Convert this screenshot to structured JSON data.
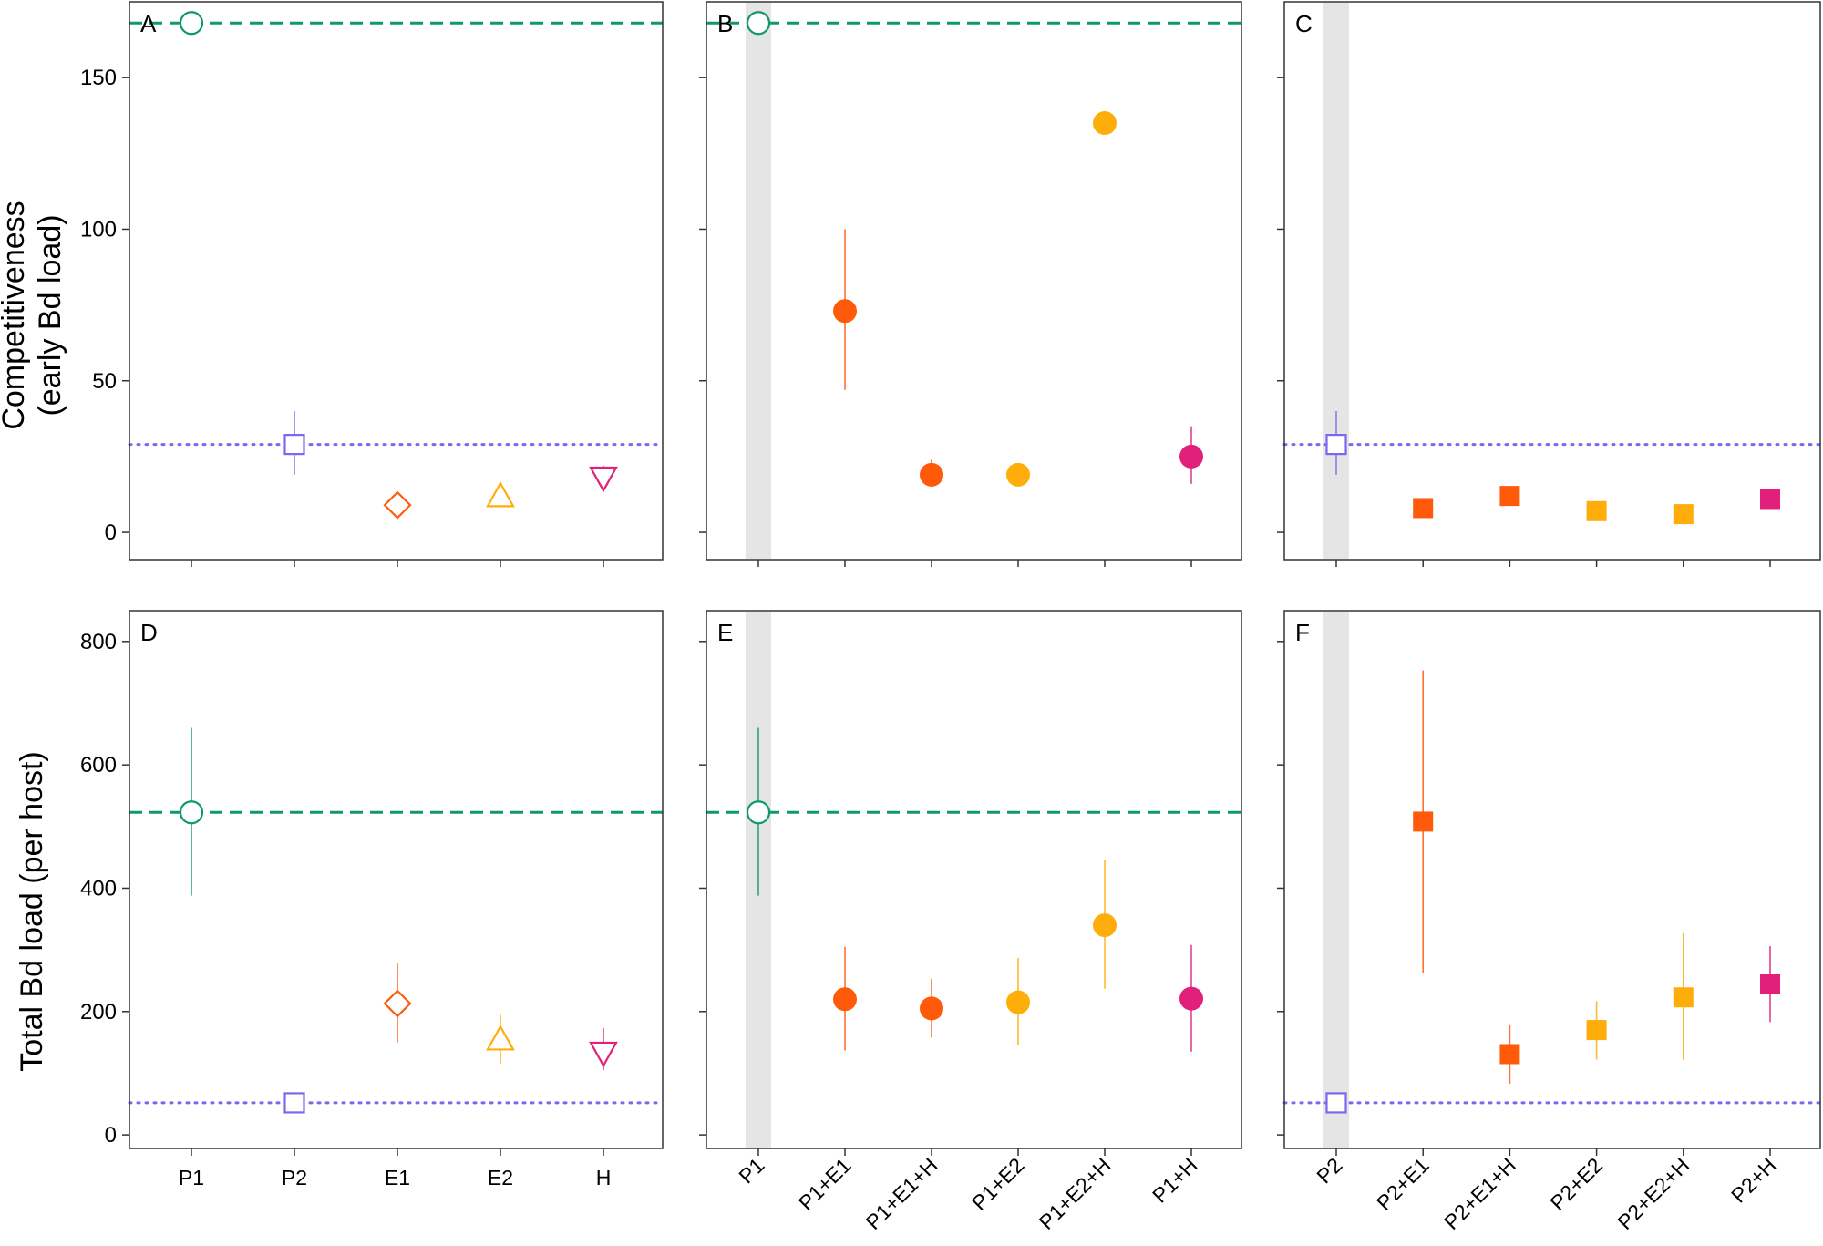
{
  "y_titles": {
    "top_line1": "Competitiveness",
    "top_line2": "(early Bd load)",
    "bottom": "Total Bd load (per host)"
  },
  "colors": {
    "P1": "#0f9870",
    "P2": "#7b68ee",
    "E1": "#ff5a0a",
    "E2": "#ffad0a",
    "H": "#e0207a",
    "shade": "#e5e5e5",
    "axis": "#333333"
  },
  "chart_data": [
    {
      "panel": "A",
      "type": "scatter",
      "row": "top",
      "ylim": [
        -9,
        175
      ],
      "yticks": [
        0,
        50,
        100,
        150
      ],
      "ylabel": "Competitiveness (early Bd load)",
      "ref_lines": [
        {
          "label": "P1",
          "value": 168,
          "style": "dashed"
        },
        {
          "label": "P2",
          "value": 29,
          "style": "dotted"
        }
      ],
      "shaded_category": null,
      "categories": [
        "P1",
        "P2",
        "E1",
        "E2",
        "H"
      ],
      "points": [
        {
          "cat": "P1",
          "value": 168,
          "low": 168,
          "high": 168,
          "color": "P1",
          "marker": "circle",
          "filled": false
        },
        {
          "cat": "P2",
          "value": 29,
          "low": 19,
          "high": 40,
          "color": "P2",
          "marker": "square",
          "filled": false
        },
        {
          "cat": "E1",
          "value": 9,
          "low": 9,
          "high": 9,
          "color": "E1",
          "marker": "diamond",
          "filled": false
        },
        {
          "cat": "E2",
          "value": 12,
          "low": 12,
          "high": 12,
          "color": "E2",
          "marker": "triangle",
          "filled": false
        },
        {
          "cat": "H",
          "value": 18,
          "low": 14,
          "high": 22,
          "color": "H",
          "marker": "triangle-down",
          "filled": false
        }
      ]
    },
    {
      "panel": "B",
      "type": "scatter",
      "row": "top",
      "ylim": [
        -9,
        175
      ],
      "yticks": [
        0,
        50,
        100,
        150
      ],
      "ref_lines": [
        {
          "label": "P1",
          "value": 168,
          "style": "dashed"
        }
      ],
      "shaded_category": "P1",
      "categories": [
        "P1",
        "P1+E1",
        "P1+E1+H",
        "P1+E2",
        "P1+E2+H",
        "P1+H"
      ],
      "points": [
        {
          "cat": "P1",
          "value": 168,
          "low": 168,
          "high": 168,
          "color": "P1",
          "marker": "circle",
          "filled": false
        },
        {
          "cat": "P1+E1",
          "value": 73,
          "low": 47,
          "high": 100,
          "color": "E1",
          "marker": "circle",
          "filled": true
        },
        {
          "cat": "P1+E1+H",
          "value": 19,
          "low": 15,
          "high": 24,
          "color": "E1",
          "marker": "circle",
          "filled": true
        },
        {
          "cat": "P1+E2",
          "value": 19,
          "low": 19,
          "high": 19,
          "color": "E2",
          "marker": "circle",
          "filled": true
        },
        {
          "cat": "P1+E2+H",
          "value": 135,
          "low": 135,
          "high": 135,
          "color": "E2",
          "marker": "circle",
          "filled": true
        },
        {
          "cat": "P1+H",
          "value": 25,
          "low": 16,
          "high": 35,
          "color": "H",
          "marker": "circle",
          "filled": true
        }
      ]
    },
    {
      "panel": "C",
      "type": "scatter",
      "row": "top",
      "ylim": [
        -9,
        175
      ],
      "yticks": [
        0,
        50,
        100,
        150
      ],
      "ref_lines": [
        {
          "label": "P2",
          "value": 29,
          "style": "dotted"
        }
      ],
      "shaded_category": "P2",
      "categories": [
        "P2",
        "P2+E1",
        "P2+E1+H",
        "P2+E2",
        "P2+E2+H",
        "P2+H"
      ],
      "points": [
        {
          "cat": "P2",
          "value": 29,
          "low": 19,
          "high": 40,
          "color": "P2",
          "marker": "square",
          "filled": false
        },
        {
          "cat": "P2+E1",
          "value": 8,
          "low": 8,
          "high": 8,
          "color": "E1",
          "marker": "square",
          "filled": true
        },
        {
          "cat": "P2+E1+H",
          "value": 12,
          "low": 12,
          "high": 12,
          "color": "E1",
          "marker": "square",
          "filled": true
        },
        {
          "cat": "P2+E2",
          "value": 7,
          "low": 7,
          "high": 7,
          "color": "E2",
          "marker": "square",
          "filled": true
        },
        {
          "cat": "P2+E2+H",
          "value": 6,
          "low": 6,
          "high": 6,
          "color": "E2",
          "marker": "square",
          "filled": true
        },
        {
          "cat": "P2+H",
          "value": 11,
          "low": 11,
          "high": 11,
          "color": "H",
          "marker": "square",
          "filled": true
        }
      ]
    },
    {
      "panel": "D",
      "type": "scatter",
      "row": "bottom",
      "ylim": [
        -22,
        850
      ],
      "yticks": [
        0,
        200,
        400,
        600,
        800
      ],
      "ylabel": "Total Bd load (per host)",
      "ref_lines": [
        {
          "label": "P1",
          "value": 523,
          "style": "dashed"
        },
        {
          "label": "P2",
          "value": 52,
          "style": "dotted"
        }
      ],
      "shaded_category": null,
      "categories": [
        "P1",
        "P2",
        "E1",
        "E2",
        "H"
      ],
      "points": [
        {
          "cat": "P1",
          "value": 523,
          "low": 388,
          "high": 660,
          "color": "P1",
          "marker": "circle",
          "filled": false
        },
        {
          "cat": "P2",
          "value": 52,
          "low": 52,
          "high": 52,
          "color": "P2",
          "marker": "square",
          "filled": false
        },
        {
          "cat": "E1",
          "value": 213,
          "low": 150,
          "high": 278,
          "color": "E1",
          "marker": "diamond",
          "filled": false
        },
        {
          "cat": "E2",
          "value": 155,
          "low": 115,
          "high": 195,
          "color": "E2",
          "marker": "triangle",
          "filled": false
        },
        {
          "cat": "H",
          "value": 133,
          "low": 105,
          "high": 173,
          "color": "H",
          "marker": "triangle-down",
          "filled": false
        }
      ]
    },
    {
      "panel": "E",
      "type": "scatter",
      "row": "bottom",
      "ylim": [
        -22,
        850
      ],
      "yticks": [
        0,
        200,
        400,
        600,
        800
      ],
      "ref_lines": [
        {
          "label": "P1",
          "value": 523,
          "style": "dashed"
        }
      ],
      "shaded_category": "P1",
      "categories": [
        "P1",
        "P1+E1",
        "P1+E1+H",
        "P1+E2",
        "P1+E2+H",
        "P1+H"
      ],
      "points": [
        {
          "cat": "P1",
          "value": 523,
          "low": 388,
          "high": 660,
          "color": "P1",
          "marker": "circle",
          "filled": false
        },
        {
          "cat": "P1+E1",
          "value": 220,
          "low": 137,
          "high": 305,
          "color": "E1",
          "marker": "circle",
          "filled": true
        },
        {
          "cat": "P1+E1+H",
          "value": 205,
          "low": 158,
          "high": 253,
          "color": "E1",
          "marker": "circle",
          "filled": true
        },
        {
          "cat": "P1+E2",
          "value": 215,
          "low": 145,
          "high": 287,
          "color": "E2",
          "marker": "circle",
          "filled": true
        },
        {
          "cat": "P1+E2+H",
          "value": 340,
          "low": 237,
          "high": 445,
          "color": "E2",
          "marker": "circle",
          "filled": true
        },
        {
          "cat": "P1+H",
          "value": 221,
          "low": 135,
          "high": 308,
          "color": "H",
          "marker": "circle",
          "filled": true
        }
      ]
    },
    {
      "panel": "F",
      "type": "scatter",
      "row": "bottom",
      "ylim": [
        -22,
        850
      ],
      "yticks": [
        0,
        200,
        400,
        600,
        800
      ],
      "ref_lines": [
        {
          "label": "P2",
          "value": 52,
          "style": "dotted"
        }
      ],
      "shaded_category": "P2",
      "categories": [
        "P2",
        "P2+E1",
        "P2+E1+H",
        "P2+E2",
        "P2+E2+H",
        "P2+H"
      ],
      "points": [
        {
          "cat": "P2",
          "value": 52,
          "low": 52,
          "high": 52,
          "color": "P2",
          "marker": "square",
          "filled": false
        },
        {
          "cat": "P2+E1",
          "value": 508,
          "low": 263,
          "high": 753,
          "color": "E1",
          "marker": "square",
          "filled": true
        },
        {
          "cat": "P2+E1+H",
          "value": 131,
          "low": 83,
          "high": 178,
          "color": "E1",
          "marker": "square",
          "filled": true
        },
        {
          "cat": "P2+E2",
          "value": 170,
          "low": 122,
          "high": 217,
          "color": "E2",
          "marker": "square",
          "filled": true
        },
        {
          "cat": "P2+E2+H",
          "value": 223,
          "low": 122,
          "high": 327,
          "color": "E2",
          "marker": "square",
          "filled": true
        },
        {
          "cat": "P2+H",
          "value": 244,
          "low": 183,
          "high": 306,
          "color": "H",
          "marker": "square",
          "filled": true
        }
      ]
    }
  ]
}
